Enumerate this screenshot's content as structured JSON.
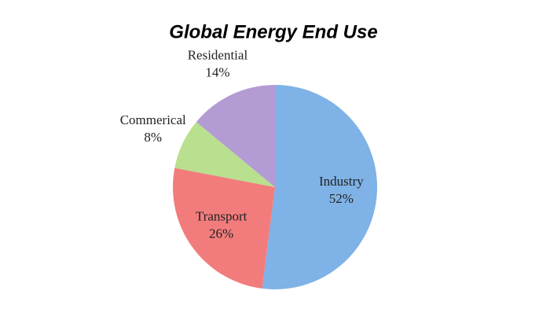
{
  "chart_data": {
    "type": "pie",
    "title": "Global Energy End Use",
    "categories": [
      "Industry",
      "Transport",
      "Commerical",
      "Residential"
    ],
    "values": [
      52,
      26,
      8,
      14
    ],
    "value_labels": [
      "52%",
      "26%",
      "8%",
      "14%"
    ],
    "colors": [
      "#7fb2e6",
      "#f27c7c",
      "#b8e08e",
      "#b39bd4"
    ]
  }
}
